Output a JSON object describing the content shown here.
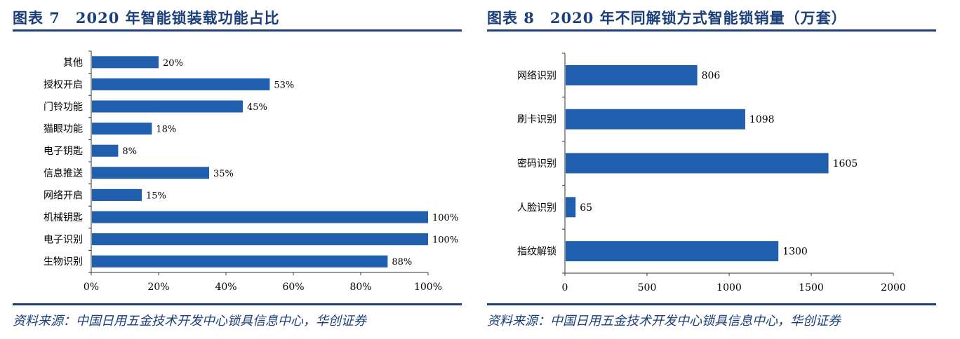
{
  "left": {
    "title": "图表 7　2020 年智能锁装载功能占比",
    "source": "资料来源：中国日用五金技术开发中心锁具信息中心，华创证券",
    "chart_data": {
      "type": "bar",
      "orientation": "horizontal",
      "categories": [
        "其他",
        "授权开启",
        "门铃功能",
        "猫眼功能",
        "电子钥匙",
        "信息推送",
        "网络开启",
        "机械钥匙",
        "电子识别",
        "生物识别"
      ],
      "values": [
        20,
        53,
        45,
        18,
        8,
        35,
        15,
        100,
        100,
        88
      ],
      "value_labels": [
        "20%",
        "53%",
        "45%",
        "18%",
        "8%",
        "35%",
        "15%",
        "100%",
        "100%",
        "88%"
      ],
      "xlim": [
        0,
        100
      ],
      "xticks": [
        "0%",
        "20%",
        "40%",
        "60%",
        "80%",
        "100%"
      ],
      "bar_color": "#1f5fad",
      "grid": false
    }
  },
  "right": {
    "title": "图表 8　2020 年不同解锁方式智能锁销量（万套）",
    "source": "资料来源：中国日用五金技术开发中心锁具信息中心，华创证券",
    "chart_data": {
      "type": "bar",
      "orientation": "horizontal",
      "categories": [
        "网络识别",
        "刷卡识别",
        "密码识别",
        "人脸识别",
        "指纹解锁"
      ],
      "values": [
        806,
        1098,
        1605,
        65,
        1300
      ],
      "value_labels": [
        "806",
        "1098",
        "1605",
        "65",
        "1300"
      ],
      "xlim": [
        0,
        2000
      ],
      "xticks": [
        "0",
        "500",
        "1000",
        "1500",
        "2000"
      ],
      "bar_color": "#1f5fad",
      "grid": false
    }
  },
  "colors": {
    "accent": "#1a3f7a",
    "bar": "#1f5fad"
  }
}
